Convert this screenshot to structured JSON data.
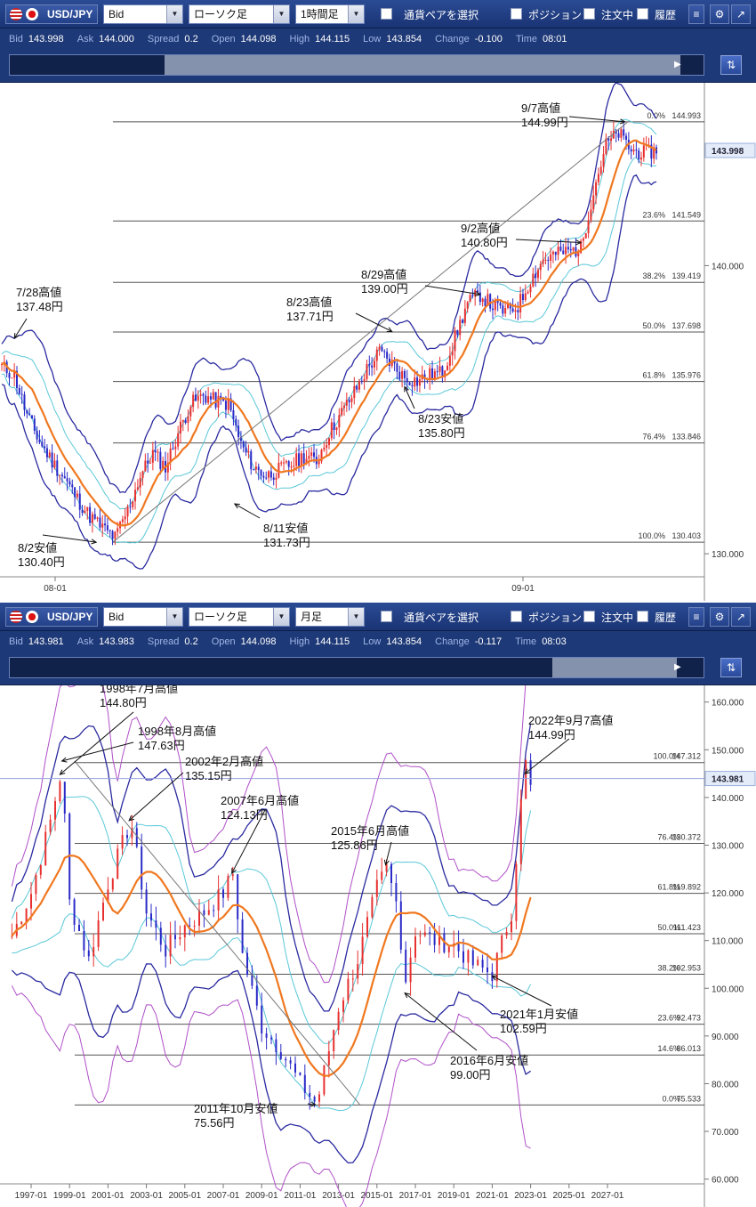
{
  "panes": [
    {
      "toolbar": {
        "pair": "USD/JPY",
        "price_type": "Bid",
        "chart_type": "ローソク足",
        "timeframe": "1時間足",
        "select_pair": "通貨ペアを選択",
        "position": "ポジション",
        "orders": "注文中",
        "history": "履歴"
      },
      "quote": {
        "bid_label": "Bid",
        "bid": "143.998",
        "ask_label": "Ask",
        "ask": "144.000",
        "spread_label": "Spread",
        "spread": "0.2",
        "open_label": "Open",
        "open": "144.098",
        "high_label": "High",
        "high": "144.115",
        "low_label": "Low",
        "low": "143.854",
        "change_label": "Change",
        "change": "-0.100",
        "time_label": "Time",
        "time": "08:01"
      }
    },
    {
      "toolbar": {
        "pair": "USD/JPY",
        "price_type": "Bid",
        "chart_type": "ローソク足",
        "timeframe": "月足",
        "select_pair": "通貨ペアを選択",
        "position": "ポジション",
        "orders": "注文中",
        "history": "履歴"
      },
      "quote": {
        "bid_label": "Bid",
        "bid": "143.981",
        "ask_label": "Ask",
        "ask": "143.983",
        "spread_label": "Spread",
        "spread": "0.2",
        "open_label": "Open",
        "open": "144.098",
        "high_label": "High",
        "high": "144.115",
        "low_label": "Low",
        "low": "143.854",
        "change_label": "Change",
        "change": "-0.117",
        "time_label": "Time",
        "time": "08:03"
      }
    }
  ],
  "colors": {
    "toolbar": "#1e3977",
    "candle_up": "#e83030",
    "candle_down": "#2a2ac8",
    "ma": "#f07820",
    "band1": "#5ac8d8",
    "band2": "#2a2aa0",
    "band3": "#b050c8",
    "grid": "#555555"
  },
  "chart_data": [
    {
      "type": "line",
      "timeframe": "1時間足",
      "ylim": [
        129.2,
        146.1
      ],
      "y_ticks": [
        "140.000",
        "130.000"
      ],
      "x_ticks": [
        "08-01",
        "09-01"
      ],
      "current_price": "143.998",
      "series": [
        {
          "values": [
            136.5,
            136.2,
            134.8,
            133.9,
            133.2,
            132.6,
            131.9,
            131.3,
            130.9,
            130.55,
            131.5,
            132.7,
            133.5,
            133.0,
            134.2,
            135.2,
            135.5,
            135.3,
            135.2,
            133.8,
            133.0,
            132.7,
            132.9,
            133.1,
            133.4,
            133.2,
            134.2,
            134.9,
            135.6,
            136.4,
            137.0,
            136.6,
            136.1,
            136.0,
            136.2,
            136.3,
            137.5,
            138.7,
            139.0,
            138.6,
            138.4,
            138.6,
            139.5,
            140.2,
            140.4,
            140.5,
            140.6,
            142.6,
            144.2,
            144.6,
            144.0,
            143.9,
            144.0
          ]
        }
      ],
      "fib_levels": [
        {
          "pct": "0.0%",
          "price": "144.993",
          "value": 144.993
        },
        {
          "pct": "23.6%",
          "price": "141.549",
          "value": 141.549
        },
        {
          "pct": "38.2%",
          "price": "139.419",
          "value": 139.419
        },
        {
          "pct": "50.0%",
          "price": "137.698",
          "value": 137.698
        },
        {
          "pct": "61.8%",
          "price": "135.976",
          "value": 135.976
        },
        {
          "pct": "76.4%",
          "price": "133.846",
          "value": 133.846
        },
        {
          "pct": "100.0%",
          "price": "130.403",
          "value": 130.403
        }
      ],
      "annotations": [
        {
          "line1": "9/7高値",
          "line2": "144.99円",
          "value": 144.99,
          "idx": 49.5
        },
        {
          "line1": "9/2高値",
          "line2": "140.80円",
          "value": 140.8,
          "idx": 46
        },
        {
          "line1": "8/29高値",
          "line2": "139.00円",
          "value": 139.0,
          "idx": 38
        },
        {
          "line1": "8/23高値",
          "line2": "137.71円",
          "value": 137.71,
          "idx": 31
        },
        {
          "line1": "8/23安値",
          "line2": "135.80円",
          "value": 135.8,
          "idx": 32
        },
        {
          "line1": "7/28高値",
          "line2": "137.48円",
          "value": 137.48,
          "idx": 1
        },
        {
          "line1": "8/11安値",
          "line2": "131.73円",
          "value": 131.73,
          "idx": 18.5
        },
        {
          "line1": "8/2安値",
          "line2": "130.40円",
          "value": 130.4,
          "idx": 7.5
        }
      ]
    },
    {
      "type": "line",
      "timeframe": "月足",
      "ylim": [
        59,
        162
      ],
      "y_ticks": [
        "160.000",
        "150.000",
        "140.000",
        "130.000",
        "120.000",
        "110.000",
        "100.000",
        "90.000",
        "80.000",
        "70.000",
        "60.000"
      ],
      "x_ticks": [
        "1997-01",
        "1999-01",
        "2001-01",
        "2003-01",
        "2005-01",
        "2007-01",
        "2009-01",
        "2011-01",
        "2013-01",
        "2015-01",
        "2017-01",
        "2019-01",
        "2021-01",
        "2023-01",
        "2025-01",
        "2027-01"
      ],
      "current_price": "143.981",
      "series": [
        {
          "x": [
            1996,
            1997,
            1998,
            1998.6,
            1999,
            2000,
            2001,
            2002,
            2002.2,
            2003,
            2004,
            2005,
            2006,
            2007,
            2007.5,
            2008,
            2009,
            2010,
            2011,
            2011.8,
            2012,
            2013,
            2014,
            2015,
            2015.5,
            2016,
            2016.5,
            2017,
            2018,
            2019,
            2020,
            2021,
            2022,
            2022.7,
            2023
          ],
          "values": [
            111,
            120,
            135,
            146,
            118,
            106,
            122,
            133,
            135,
            116,
            108,
            113,
            116,
            120,
            124,
            107,
            92,
            87,
            80,
            76,
            78,
            96,
            106,
            121,
            125,
            118,
            102,
            112,
            110,
            109,
            105,
            103,
            116,
            148,
            142
          ]
        }
      ],
      "fib_levels": [
        {
          "pct": "100.0%",
          "price": "147.312",
          "value": 147.312
        },
        {
          "pct": "76.4%",
          "price": "130.372",
          "value": 130.372
        },
        {
          "pct": "61.8%",
          "price": "119.892",
          "value": 119.892
        },
        {
          "pct": "50.0%",
          "price": "111.423",
          "value": 111.423
        },
        {
          "pct": "38.2%",
          "price": "102.953",
          "value": 102.953
        },
        {
          "pct": "23.6%",
          "price": "92.473",
          "value": 92.473
        },
        {
          "pct": "14.6%",
          "price": "86.013",
          "value": 86.013
        },
        {
          "pct": "0.0%",
          "price": "75.533",
          "value": 75.533
        }
      ],
      "annotations": [
        {
          "line1": "1998年7月高値",
          "line2": "144.80円",
          "value": 144.8,
          "year": 1998.5
        },
        {
          "line1": "1998年8月高値",
          "line2": "147.63円",
          "value": 147.63,
          "year": 1998.6
        },
        {
          "line1": "2002年2月高値",
          "line2": "135.15円",
          "value": 135.15,
          "year": 2002.1
        },
        {
          "line1": "2007年6月高値",
          "line2": "124.13円",
          "value": 124.13,
          "year": 2007.45
        },
        {
          "line1": "2015年6月高値",
          "line2": "125.86円",
          "value": 125.86,
          "year": 2015.45
        },
        {
          "line1": "2022年9月7高値",
          "line2": "144.99円",
          "value": 144.99,
          "year": 2022.7
        },
        {
          "line1": "2021年1月安値",
          "line2": "102.59円",
          "value": 102.59,
          "year": 2021.0
        },
        {
          "line1": "2016年6月安値",
          "line2": "99.00円",
          "value": 99.0,
          "year": 2016.45
        },
        {
          "line1": "2011年10月安値",
          "line2": "75.56円",
          "value": 75.56,
          "year": 2011.8
        }
      ]
    }
  ]
}
